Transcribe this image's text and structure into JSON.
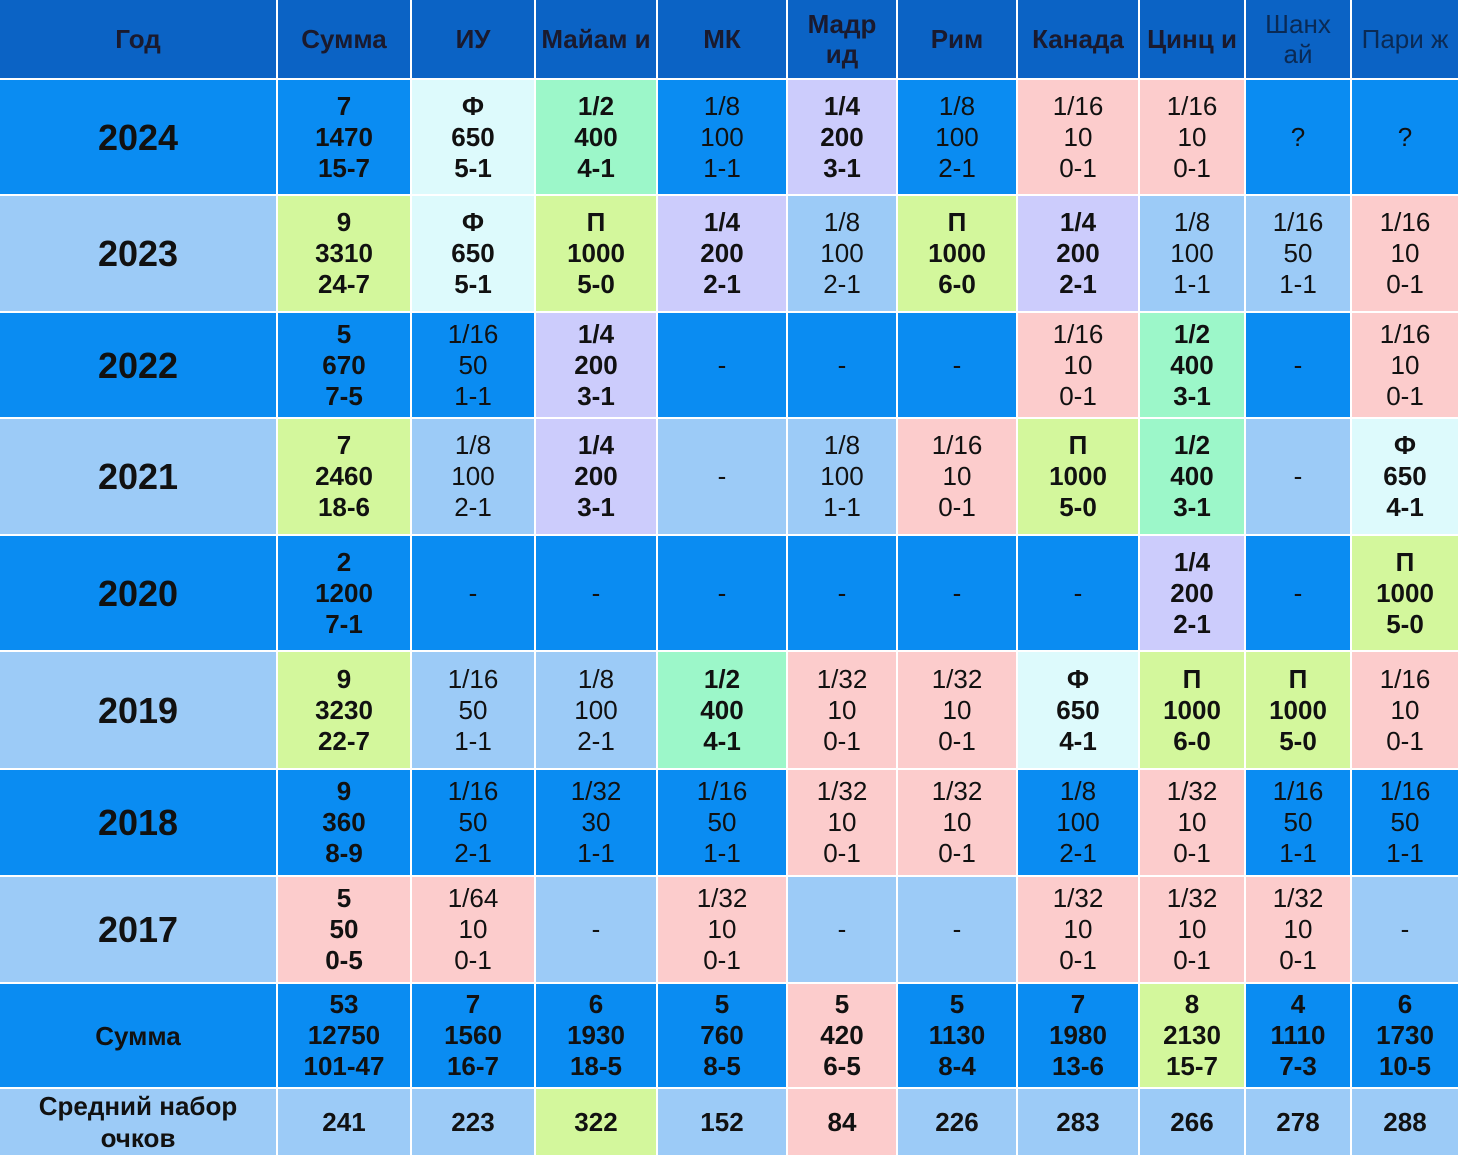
{
  "colors": {
    "header": "#0b63c5",
    "dark": "#0a8cf2",
    "light": "#9ccbf7",
    "pink": "#fccccc",
    "green": "#9cf7c9",
    "lime": "#d3f79c",
    "lavender": "#ccccfc",
    "cyan": "#ddfafc"
  },
  "table": {
    "header": [
      "Год",
      "Сумма",
      "ИУ",
      "Майам и",
      "МК",
      "Мадр ид",
      "Рим",
      "Канада",
      "Цинц и",
      "Шанх ай",
      "Пари ж"
    ],
    "rows": [
      {
        "year": "2024",
        "row_bg": "dark",
        "cells": [
          {
            "bg": "dark",
            "bold": true,
            "lines": [
              "7",
              "1470",
              "15-7"
            ]
          },
          {
            "bg": "cyan",
            "bold": true,
            "lines": [
              "Ф",
              "650",
              "5-1"
            ]
          },
          {
            "bg": "green",
            "bold": true,
            "lines": [
              "1/2",
              "400",
              "4-1"
            ]
          },
          {
            "bg": "dark",
            "bold": false,
            "lines": [
              "1/8",
              "100",
              "1-1"
            ]
          },
          {
            "bg": "lavender",
            "bold": true,
            "lines": [
              "1/4",
              "200",
              "3-1"
            ]
          },
          {
            "bg": "dark",
            "bold": false,
            "lines": [
              "1/8",
              "100",
              "2-1"
            ]
          },
          {
            "bg": "pink",
            "bold": false,
            "lines": [
              "1/16",
              "10",
              "0-1"
            ]
          },
          {
            "bg": "pink",
            "bold": false,
            "lines": [
              "1/16",
              "10",
              "0-1"
            ]
          },
          {
            "bg": "dark",
            "bold": false,
            "lines": [
              "?"
            ]
          },
          {
            "bg": "dark",
            "bold": false,
            "lines": [
              "?"
            ]
          }
        ]
      },
      {
        "year": "2023",
        "row_bg": "light",
        "cells": [
          {
            "bg": "lime",
            "bold": true,
            "lines": [
              "9",
              "3310",
              "24-7"
            ]
          },
          {
            "bg": "cyan",
            "bold": true,
            "lines": [
              "Ф",
              "650",
              "5-1"
            ]
          },
          {
            "bg": "lime",
            "bold": true,
            "lines": [
              "П",
              "1000",
              "5-0"
            ]
          },
          {
            "bg": "lavender",
            "bold": true,
            "lines": [
              "1/4",
              "200",
              "2-1"
            ]
          },
          {
            "bg": "light",
            "bold": false,
            "lines": [
              "1/8",
              "100",
              "2-1"
            ]
          },
          {
            "bg": "lime",
            "bold": true,
            "lines": [
              "П",
              "1000",
              "6-0"
            ]
          },
          {
            "bg": "lavender",
            "bold": true,
            "lines": [
              "1/4",
              "200",
              "2-1"
            ]
          },
          {
            "bg": "light",
            "bold": false,
            "lines": [
              "1/8",
              "100",
              "1-1"
            ]
          },
          {
            "bg": "light",
            "bold": false,
            "lines": [
              "1/16",
              "50",
              "1-1"
            ]
          },
          {
            "bg": "pink",
            "bold": false,
            "lines": [
              "1/16",
              "10",
              "0-1"
            ]
          }
        ]
      },
      {
        "year": "2022",
        "row_bg": "dark",
        "cells": [
          {
            "bg": "dark",
            "bold": true,
            "lines": [
              "5",
              "670",
              "7-5"
            ]
          },
          {
            "bg": "dark",
            "bold": false,
            "lines": [
              "1/16",
              "50",
              "1-1"
            ]
          },
          {
            "bg": "lavender",
            "bold": true,
            "lines": [
              "1/4",
              "200",
              "3-1"
            ]
          },
          {
            "bg": "dark",
            "bold": false,
            "lines": [
              "-"
            ]
          },
          {
            "bg": "dark",
            "bold": false,
            "lines": [
              "-"
            ]
          },
          {
            "bg": "dark",
            "bold": false,
            "lines": [
              "-"
            ]
          },
          {
            "bg": "pink",
            "bold": false,
            "lines": [
              "1/16",
              "10",
              "0-1"
            ]
          },
          {
            "bg": "green",
            "bold": true,
            "lines": [
              "1/2",
              "400",
              "3-1"
            ]
          },
          {
            "bg": "dark",
            "bold": false,
            "lines": [
              "-"
            ]
          },
          {
            "bg": "pink",
            "bold": false,
            "lines": [
              "1/16",
              "10",
              "0-1"
            ]
          }
        ]
      },
      {
        "year": "2021",
        "row_bg": "light",
        "cells": [
          {
            "bg": "lime",
            "bold": true,
            "lines": [
              "7",
              "2460",
              "18-6"
            ]
          },
          {
            "bg": "light",
            "bold": false,
            "lines": [
              "1/8",
              "100",
              "2-1"
            ]
          },
          {
            "bg": "lavender",
            "bold": true,
            "lines": [
              "1/4",
              "200",
              "3-1"
            ]
          },
          {
            "bg": "light",
            "bold": false,
            "lines": [
              "-"
            ]
          },
          {
            "bg": "light",
            "bold": false,
            "lines": [
              "1/8",
              "100",
              "1-1"
            ]
          },
          {
            "bg": "pink",
            "bold": false,
            "lines": [
              "1/16",
              "10",
              "0-1"
            ]
          },
          {
            "bg": "lime",
            "bold": true,
            "lines": [
              "П",
              "1000",
              "5-0"
            ]
          },
          {
            "bg": "green",
            "bold": true,
            "lines": [
              "1/2",
              "400",
              "3-1"
            ]
          },
          {
            "bg": "light",
            "bold": false,
            "lines": [
              "-"
            ]
          },
          {
            "bg": "cyan",
            "bold": true,
            "lines": [
              "Ф",
              "650",
              "4-1"
            ]
          }
        ]
      },
      {
        "year": "2020",
        "row_bg": "dark",
        "cells": [
          {
            "bg": "dark",
            "bold": true,
            "lines": [
              "2",
              "1200",
              "7-1"
            ]
          },
          {
            "bg": "dark",
            "bold": false,
            "lines": [
              "-"
            ]
          },
          {
            "bg": "dark",
            "bold": false,
            "lines": [
              "-"
            ]
          },
          {
            "bg": "dark",
            "bold": false,
            "lines": [
              "-"
            ]
          },
          {
            "bg": "dark",
            "bold": false,
            "lines": [
              "-"
            ]
          },
          {
            "bg": "dark",
            "bold": false,
            "lines": [
              "-"
            ]
          },
          {
            "bg": "dark",
            "bold": false,
            "lines": [
              "-"
            ]
          },
          {
            "bg": "lavender",
            "bold": true,
            "lines": [
              "1/4",
              "200",
              "2-1"
            ]
          },
          {
            "bg": "dark",
            "bold": false,
            "lines": [
              "-"
            ]
          },
          {
            "bg": "lime",
            "bold": true,
            "lines": [
              "П",
              "1000",
              "5-0"
            ]
          }
        ]
      },
      {
        "year": "2019",
        "row_bg": "light",
        "cells": [
          {
            "bg": "lime",
            "bold": true,
            "lines": [
              "9",
              "3230",
              "22-7"
            ]
          },
          {
            "bg": "light",
            "bold": false,
            "lines": [
              "1/16",
              "50",
              "1-1"
            ]
          },
          {
            "bg": "light",
            "bold": false,
            "lines": [
              "1/8",
              "100",
              "2-1"
            ]
          },
          {
            "bg": "green",
            "bold": true,
            "lines": [
              "1/2",
              "400",
              "4-1"
            ]
          },
          {
            "bg": "pink",
            "bold": false,
            "lines": [
              "1/32",
              "10",
              "0-1"
            ]
          },
          {
            "bg": "pink",
            "bold": false,
            "lines": [
              "1/32",
              "10",
              "0-1"
            ]
          },
          {
            "bg": "cyan",
            "bold": true,
            "lines": [
              "Ф",
              "650",
              "4-1"
            ]
          },
          {
            "bg": "lime",
            "bold": true,
            "lines": [
              "П",
              "1000",
              "6-0"
            ]
          },
          {
            "bg": "lime",
            "bold": true,
            "lines": [
              "П",
              "1000",
              "5-0"
            ]
          },
          {
            "bg": "pink",
            "bold": false,
            "lines": [
              "1/16",
              "10",
              "0-1"
            ]
          }
        ]
      },
      {
        "year": "2018",
        "row_bg": "dark",
        "cells": [
          {
            "bg": "dark",
            "bold": true,
            "lines": [
              "9",
              "360",
              "8-9"
            ]
          },
          {
            "bg": "dark",
            "bold": false,
            "lines": [
              "1/16",
              "50",
              "2-1"
            ]
          },
          {
            "bg": "dark",
            "bold": false,
            "lines": [
              "1/32",
              "30",
              "1-1"
            ]
          },
          {
            "bg": "dark",
            "bold": false,
            "lines": [
              "1/16",
              "50",
              "1-1"
            ]
          },
          {
            "bg": "pink",
            "bold": false,
            "lines": [
              "1/32",
              "10",
              "0-1"
            ]
          },
          {
            "bg": "pink",
            "bold": false,
            "lines": [
              "1/32",
              "10",
              "0-1"
            ]
          },
          {
            "bg": "dark",
            "bold": false,
            "lines": [
              "1/8",
              "100",
              "2-1"
            ]
          },
          {
            "bg": "pink",
            "bold": false,
            "lines": [
              "1/32",
              "10",
              "0-1"
            ]
          },
          {
            "bg": "dark",
            "bold": false,
            "lines": [
              "1/16",
              "50",
              "1-1"
            ]
          },
          {
            "bg": "dark",
            "bold": false,
            "lines": [
              "1/16",
              "50",
              "1-1"
            ]
          }
        ]
      },
      {
        "year": "2017",
        "row_bg": "light",
        "cells": [
          {
            "bg": "pink",
            "bold": true,
            "lines": [
              "5",
              "50",
              "0-5"
            ]
          },
          {
            "bg": "pink",
            "bold": false,
            "lines": [
              "1/64",
              "10",
              "0-1"
            ]
          },
          {
            "bg": "light",
            "bold": false,
            "lines": [
              "-"
            ]
          },
          {
            "bg": "pink",
            "bold": false,
            "lines": [
              "1/32",
              "10",
              "0-1"
            ]
          },
          {
            "bg": "light",
            "bold": false,
            "lines": [
              "-"
            ]
          },
          {
            "bg": "light",
            "bold": false,
            "lines": [
              "-"
            ]
          },
          {
            "bg": "pink",
            "bold": false,
            "lines": [
              "1/32",
              "10",
              "0-1"
            ]
          },
          {
            "bg": "pink",
            "bold": false,
            "lines": [
              "1/32",
              "10",
              "0-1"
            ]
          },
          {
            "bg": "pink",
            "bold": false,
            "lines": [
              "1/32",
              "10",
              "0-1"
            ]
          },
          {
            "bg": "light",
            "bold": false,
            "lines": [
              "-"
            ]
          }
        ]
      }
    ],
    "sum_row": {
      "label": "Сумма",
      "row_bg": "dark",
      "cells": [
        {
          "bg": "dark",
          "bold": true,
          "lines": [
            "53",
            "12750",
            "101-47"
          ]
        },
        {
          "bg": "dark",
          "bold": true,
          "lines": [
            "7",
            "1560",
            "16-7"
          ]
        },
        {
          "bg": "dark",
          "bold": true,
          "lines": [
            "6",
            "1930",
            "18-5"
          ]
        },
        {
          "bg": "dark",
          "bold": true,
          "lines": [
            "5",
            "760",
            "8-5"
          ]
        },
        {
          "bg": "pink",
          "bold": true,
          "lines": [
            "5",
            "420",
            "6-5"
          ]
        },
        {
          "bg": "dark",
          "bold": true,
          "lines": [
            "5",
            "1130",
            "8-4"
          ]
        },
        {
          "bg": "dark",
          "bold": true,
          "lines": [
            "7",
            "1980",
            "13-6"
          ]
        },
        {
          "bg": "lime",
          "bold": true,
          "lines": [
            "8",
            "2130",
            "15-7"
          ]
        },
        {
          "bg": "dark",
          "bold": true,
          "lines": [
            "4",
            "1110",
            "7-3"
          ]
        },
        {
          "bg": "dark",
          "bold": true,
          "lines": [
            "6",
            "1730",
            "10-5"
          ]
        }
      ]
    },
    "avg_row": {
      "label_lines": [
        "Средний набор",
        "очков"
      ],
      "row_bg": "light",
      "cells": [
        {
          "bg": "light",
          "bold": true,
          "lines": [
            "241"
          ]
        },
        {
          "bg": "light",
          "bold": true,
          "lines": [
            "223"
          ]
        },
        {
          "bg": "lime",
          "bold": true,
          "lines": [
            "322"
          ]
        },
        {
          "bg": "light",
          "bold": true,
          "lines": [
            "152"
          ]
        },
        {
          "bg": "pink",
          "bold": true,
          "lines": [
            "84"
          ]
        },
        {
          "bg": "light",
          "bold": true,
          "lines": [
            "226"
          ]
        },
        {
          "bg": "light",
          "bold": true,
          "lines": [
            "283"
          ]
        },
        {
          "bg": "light",
          "bold": true,
          "lines": [
            "266"
          ]
        },
        {
          "bg": "light",
          "bold": true,
          "lines": [
            "278"
          ]
        },
        {
          "bg": "light",
          "bold": true,
          "lines": [
            "288"
          ]
        }
      ]
    }
  }
}
